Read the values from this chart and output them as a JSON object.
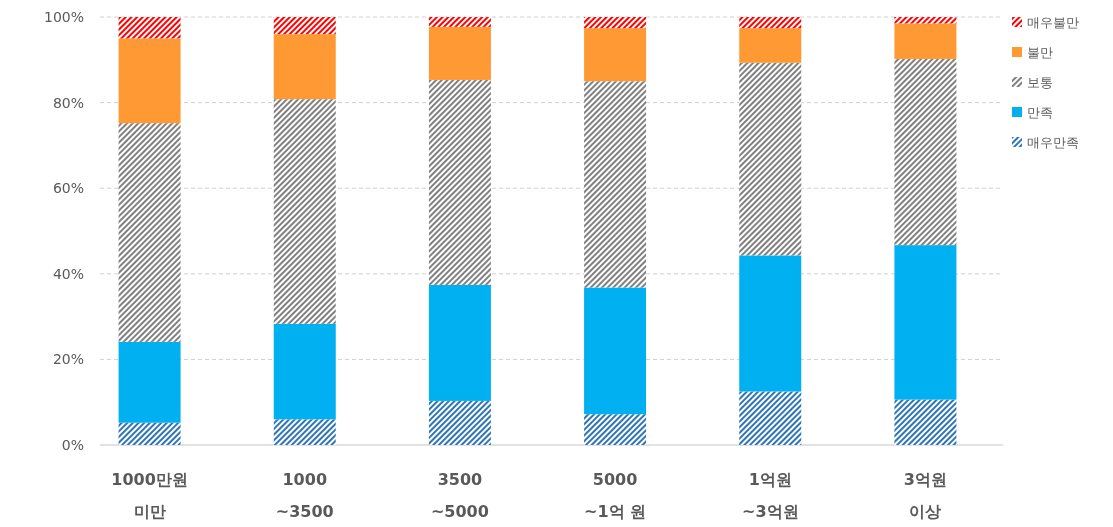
{
  "chart_data": {
    "type": "bar",
    "stacked": true,
    "categories": [
      "1000만원\n미만",
      "1000\n~3500",
      "3500\n~5000",
      "5000\n~1억 원",
      "1억원\n~3억원",
      "3억원\n이상"
    ],
    "series": [
      {
        "name": "매우만족",
        "color": "#2e75b6",
        "values": [
          5.2,
          6.0,
          10.3,
          7.2,
          12.5,
          10.6
        ]
      },
      {
        "name": "만족",
        "color": "#00b0f0",
        "values": [
          18.9,
          22.3,
          27.1,
          29.6,
          31.8,
          36.1
        ]
      },
      {
        "name": "보통",
        "color": "#808080",
        "values": [
          51.1,
          52.5,
          47.9,
          48.2,
          45.0,
          43.5
        ]
      },
      {
        "name": "불만",
        "color": "#ff9933",
        "values": [
          19.8,
          15.2,
          12.4,
          12.4,
          8.1,
          8.3
        ]
      },
      {
        "name": "매우불만",
        "color": "#ff0000",
        "values": [
          5.0,
          4.0,
          2.3,
          2.6,
          2.6,
          1.5
        ]
      }
    ],
    "ylim": [
      0,
      100
    ],
    "yticks": [
      {
        "value": 0,
        "label": "0%"
      },
      {
        "value": 20,
        "label": "20%"
      },
      {
        "value": 40,
        "label": "40%"
      },
      {
        "value": 60,
        "label": "60%"
      },
      {
        "value": 80,
        "label": "80%"
      },
      {
        "value": 100,
        "label": "100%"
      }
    ],
    "grid": "y",
    "legend": "top right"
  }
}
